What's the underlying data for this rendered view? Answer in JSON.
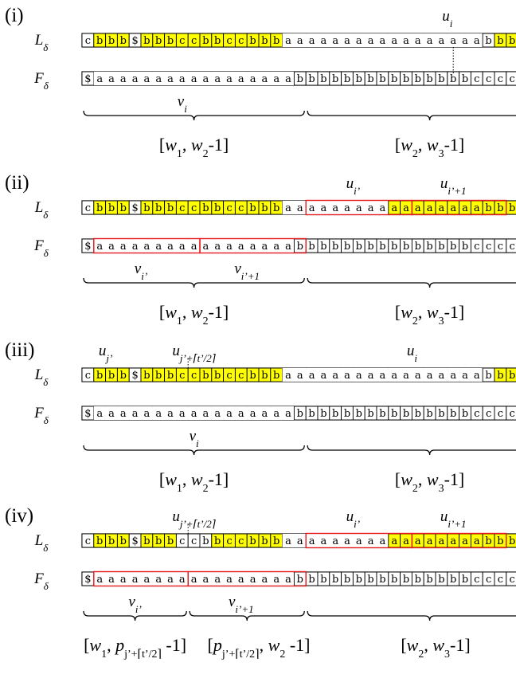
{
  "colors": {
    "highlight": "#ffff00",
    "border": "#000000",
    "range": "#e8191d",
    "background": "#ffffff"
  },
  "panels": [
    {
      "label": "(i)",
      "L_string": "cbbb$bbbccbbccbbbaaaaaaaaaaaaaaaaabbb",
      "L_highlight": "0111011111111111100000000000000000011",
      "F_string": "$aaaaaaaaaaaaaaaaabbbbbbbbbbbbbbbcccccc",
      "L_boxes": [],
      "F_boxes": [],
      "top_labels": [
        {
          "text": "u",
          "sub": "i",
          "cell": 31
        }
      ],
      "mid_labels": [
        {
          "text": "v",
          "sub": "i",
          "cell": 8.5
        }
      ],
      "dotted": [
        {
          "row": "LF",
          "cell": 31.5
        }
      ],
      "brackets": [
        [
          0,
          19
        ],
        [
          19,
          40
        ]
      ],
      "intervals": [
        {
          "pieces": [
            [
              "[",
              "n"
            ],
            [
              "w",
              "v"
            ],
            [
              "1",
              "s"
            ],
            [
              ", ",
              "n"
            ],
            [
              "w",
              "v"
            ],
            [
              "2",
              "s"
            ],
            [
              "-1]",
              "n"
            ]
          ],
          "cell": 9.5
        },
        {
          "pieces": [
            [
              "[",
              "n"
            ],
            [
              "w",
              "v"
            ],
            [
              "2",
              "s"
            ],
            [
              ", ",
              "n"
            ],
            [
              "w",
              "v"
            ],
            [
              "3",
              "s"
            ],
            [
              "-1]",
              "n"
            ]
          ],
          "cell": 29.5
        }
      ]
    },
    {
      "label": "(ii)",
      "L_string": "cbbb$bbbccbbccbbbaaaaaaaaaaaaaaaaabbb",
      "L_highlight": "0111011111111111100000000011111111111",
      "F_string": "$aaaaaaaaaaaaaaaaabbbbbbbbbbbbbbbcccccc",
      "L_boxes": [
        [
          19,
          28
        ],
        [
          28,
          36
        ]
      ],
      "F_boxes": [
        [
          1,
          10
        ],
        [
          10,
          19
        ]
      ],
      "top_labels": [
        {
          "text": "u",
          "sub": "i’",
          "cell": 23
        },
        {
          "text": "u",
          "sub": "i’+1",
          "cell": 31.5
        }
      ],
      "mid_labels": [
        {
          "text": "v",
          "sub": "i’",
          "cell": 5
        },
        {
          "text": "v",
          "sub": "i’+1",
          "cell": 14
        }
      ],
      "dotted": [],
      "brackets": [
        [
          0,
          19
        ],
        [
          19,
          40
        ]
      ],
      "intervals": [
        {
          "pieces": [
            [
              "[",
              "n"
            ],
            [
              "w",
              "v"
            ],
            [
              "1",
              "s"
            ],
            [
              ", ",
              "n"
            ],
            [
              "w",
              "v"
            ],
            [
              "2",
              "s"
            ],
            [
              "-1]",
              "n"
            ]
          ],
          "cell": 9.5
        },
        {
          "pieces": [
            [
              "[",
              "n"
            ],
            [
              "w",
              "v"
            ],
            [
              "2",
              "s"
            ],
            [
              ", ",
              "n"
            ],
            [
              "w",
              "v"
            ],
            [
              "3",
              "s"
            ],
            [
              "-1]",
              "n"
            ]
          ],
          "cell": 29.5
        }
      ]
    },
    {
      "label": "(iii)",
      "L_string": "cbbb$bbbccbbccbbbaaaaaaaaaaaaaaaaabbb",
      "L_highlight": "0111011111111111100000000000000000011",
      "F_string": "$aaaaaaaaaaaaaaaaabbbbbbbbbbbbbbbcccccc",
      "L_boxes": [],
      "F_boxes": [],
      "top_labels": [
        {
          "text": "u",
          "sub": "j’",
          "cell": 2
        },
        {
          "text": "u",
          "sub": "j’+⌈t’/2⌉",
          "cell": 9.5
        },
        {
          "text": "u",
          "sub": "i",
          "cell": 28
        }
      ],
      "mid_labels": [
        {
          "text": "v",
          "sub": "i",
          "cell": 9.5
        }
      ],
      "dotted": [
        {
          "row": "L",
          "cell": 9
        }
      ],
      "brackets": [
        [
          0,
          19
        ],
        [
          19,
          40
        ]
      ],
      "intervals": [
        {
          "pieces": [
            [
              "[",
              "n"
            ],
            [
              "w",
              "v"
            ],
            [
              "1",
              "s"
            ],
            [
              ", ",
              "n"
            ],
            [
              "w",
              "v"
            ],
            [
              "2",
              "s"
            ],
            [
              "-1]",
              "n"
            ]
          ],
          "cell": 9.5
        },
        {
          "pieces": [
            [
              "[",
              "n"
            ],
            [
              "w",
              "v"
            ],
            [
              "2",
              "s"
            ],
            [
              ", ",
              "n"
            ],
            [
              "w",
              "v"
            ],
            [
              "3",
              "s"
            ],
            [
              "-1]",
              "n"
            ]
          ],
          "cell": 29.5
        }
      ]
    },
    {
      "label": "(iv)",
      "L_string": "cbbb$bbbccbbccbbbaaaaaaaaaaaaaaaaabbb",
      "L_highlight": "0111011100011111100000000011111111111",
      "F_string": "$aaaaaaaaaaaaaaaaabbbbbbbbbbbbbbbcccccc",
      "L_boxes": [
        [
          19,
          28
        ],
        [
          28,
          36
        ]
      ],
      "F_boxes": [
        [
          1,
          9
        ],
        [
          9,
          19
        ]
      ],
      "top_labels": [
        {
          "text": "u",
          "sub": "j’+⌈t’/2⌉",
          "cell": 9.5
        },
        {
          "text": "u",
          "sub": "i’",
          "cell": 23
        },
        {
          "text": "u",
          "sub": "i’+1",
          "cell": 31.5
        }
      ],
      "mid_labels": [
        {
          "text": "v",
          "sub": "i’",
          "cell": 4.5
        },
        {
          "text": "v",
          "sub": "i’+1",
          "cell": 13.5
        }
      ],
      "dotted": [
        {
          "row": "L",
          "cell": 9
        }
      ],
      "brackets": [
        [
          0,
          9
        ],
        [
          9,
          19
        ],
        [
          19,
          40
        ]
      ],
      "intervals": [
        {
          "pieces": [
            [
              "[",
              "n"
            ],
            [
              "w",
              "v"
            ],
            [
              "1",
              "s"
            ],
            [
              ", ",
              "n"
            ],
            [
              "p",
              "v"
            ],
            [
              "j’+⌈t’/2⌉",
              "s"
            ],
            [
              " -1]",
              "n"
            ]
          ],
          "cell": 4.5
        },
        {
          "pieces": [
            [
              "[",
              "n"
            ],
            [
              "p",
              "v"
            ],
            [
              "j’+⌈t’/2⌉",
              "s"
            ],
            [
              ", ",
              "n"
            ],
            [
              "w",
              "v"
            ],
            [
              "2",
              "s"
            ],
            [
              " -1]",
              "n"
            ]
          ],
          "cell": 15
        },
        {
          "pieces": [
            [
              "[",
              "n"
            ],
            [
              "w",
              "v"
            ],
            [
              "2",
              "s"
            ],
            [
              ", ",
              "n"
            ],
            [
              "w",
              "v"
            ],
            [
              "3",
              "s"
            ],
            [
              "-1]",
              "n"
            ]
          ],
          "cell": 30
        }
      ]
    }
  ],
  "row_labels": {
    "L": "L",
    "F": "F",
    "sub": "δ"
  }
}
